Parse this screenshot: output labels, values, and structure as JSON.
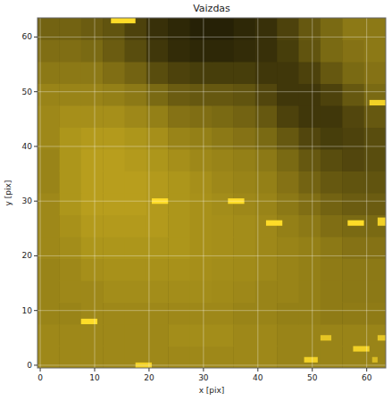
{
  "chart_data": {
    "type": "heatmap",
    "title": "Vaizdas",
    "x_label": "x [pix]",
    "y_label": "y [pix]",
    "xlim": [
      -0.5,
      63.5
    ],
    "ylim": [
      -0.5,
      63.5
    ],
    "xticks": [
      0,
      10,
      20,
      30,
      40,
      50,
      60
    ],
    "yticks": [
      0,
      10,
      20,
      30,
      40,
      50,
      60
    ],
    "grid": true,
    "color": "#ffdc28",
    "zlim": [
      0,
      1
    ],
    "x_edges": [
      -0.5,
      3.5,
      7.5,
      11.5,
      15.5,
      19.5,
      23.5,
      27.5,
      31.5,
      35.5,
      39.5,
      43.5,
      47.5,
      51.5,
      55.5,
      59.5,
      63.5
    ],
    "y_edges": [
      -0.5,
      3.5,
      7.5,
      11.5,
      15.5,
      19.5,
      23.5,
      27.5,
      31.5,
      35.5,
      39.5,
      43.5,
      47.5,
      51.5,
      55.5,
      59.5,
      63.5
    ],
    "z": [
      [
        0.62,
        0.62,
        0.62,
        0.62,
        0.62,
        0.62,
        0.62,
        0.62,
        0.62,
        0.62,
        0.62,
        0.6,
        0.6,
        0.6,
        0.6,
        0.6
      ],
      [
        0.62,
        0.62,
        0.62,
        0.62,
        0.62,
        0.62,
        0.64,
        0.64,
        0.64,
        0.62,
        0.62,
        0.6,
        0.6,
        0.6,
        0.6,
        0.6
      ],
      [
        0.6,
        0.6,
        0.62,
        0.62,
        0.62,
        0.62,
        0.62,
        0.62,
        0.62,
        0.6,
        0.6,
        0.58,
        0.58,
        0.56,
        0.56,
        0.56
      ],
      [
        0.6,
        0.62,
        0.62,
        0.64,
        0.64,
        0.64,
        0.64,
        0.64,
        0.63,
        0.62,
        0.6,
        0.6,
        0.58,
        0.56,
        0.55,
        0.55
      ],
      [
        0.6,
        0.62,
        0.65,
        0.66,
        0.66,
        0.66,
        0.66,
        0.65,
        0.64,
        0.63,
        0.62,
        0.6,
        0.58,
        0.56,
        0.55,
        0.55
      ],
      [
        0.62,
        0.64,
        0.68,
        0.68,
        0.68,
        0.68,
        0.68,
        0.66,
        0.65,
        0.64,
        0.62,
        0.6,
        0.58,
        0.55,
        0.52,
        0.52
      ],
      [
        0.62,
        0.66,
        0.7,
        0.7,
        0.7,
        0.7,
        0.68,
        0.66,
        0.65,
        0.64,
        0.62,
        0.58,
        0.55,
        0.5,
        0.48,
        0.48
      ],
      [
        0.62,
        0.68,
        0.72,
        0.72,
        0.72,
        0.7,
        0.68,
        0.66,
        0.64,
        0.62,
        0.6,
        0.55,
        0.5,
        0.45,
        0.42,
        0.42
      ],
      [
        0.6,
        0.68,
        0.72,
        0.72,
        0.72,
        0.7,
        0.68,
        0.65,
        0.62,
        0.6,
        0.58,
        0.52,
        0.45,
        0.4,
        0.38,
        0.38
      ],
      [
        0.6,
        0.68,
        0.72,
        0.72,
        0.7,
        0.68,
        0.65,
        0.62,
        0.6,
        0.58,
        0.55,
        0.48,
        0.4,
        0.35,
        0.32,
        0.35
      ],
      [
        0.62,
        0.68,
        0.7,
        0.7,
        0.68,
        0.65,
        0.6,
        0.58,
        0.55,
        0.52,
        0.48,
        0.4,
        0.32,
        0.28,
        0.3,
        0.35
      ],
      [
        0.62,
        0.65,
        0.65,
        0.65,
        0.62,
        0.58,
        0.52,
        0.5,
        0.48,
        0.45,
        0.4,
        0.3,
        0.25,
        0.25,
        0.32,
        0.4
      ],
      [
        0.6,
        0.6,
        0.6,
        0.58,
        0.55,
        0.48,
        0.42,
        0.4,
        0.4,
        0.38,
        0.32,
        0.25,
        0.25,
        0.3,
        0.4,
        0.48
      ],
      [
        0.55,
        0.55,
        0.55,
        0.5,
        0.45,
        0.35,
        0.3,
        0.28,
        0.28,
        0.28,
        0.25,
        0.25,
        0.3,
        0.4,
        0.48,
        0.52
      ],
      [
        0.5,
        0.5,
        0.48,
        0.42,
        0.35,
        0.25,
        0.2,
        0.18,
        0.18,
        0.2,
        0.22,
        0.28,
        0.38,
        0.48,
        0.52,
        0.55
      ],
      [
        0.45,
        0.45,
        0.42,
        0.38,
        0.3,
        0.22,
        0.18,
        0.15,
        0.15,
        0.18,
        0.22,
        0.3,
        0.4,
        0.48,
        0.55,
        0.55
      ]
    ],
    "spots": [
      {
        "x0": 13,
        "x1": 17.5,
        "y0": 62.5,
        "y1": 63.5,
        "value": 1
      },
      {
        "x0": 20.5,
        "x1": 23.5,
        "y0": 29.5,
        "y1": 30.5,
        "value": 1
      },
      {
        "x0": 34.5,
        "x1": 37.5,
        "y0": 29.5,
        "y1": 30.5,
        "value": 1
      },
      {
        "x0": 41.5,
        "x1": 44.5,
        "y0": 25.5,
        "y1": 26.5,
        "value": 1
      },
      {
        "x0": 56.5,
        "x1": 59.5,
        "y0": 25.5,
        "y1": 26.5,
        "value": 1
      },
      {
        "x0": 62,
        "x1": 64,
        "y0": 25.5,
        "y1": 27,
        "value": 0.95
      },
      {
        "x0": 60.5,
        "x1": 64,
        "y0": 47.5,
        "y1": 48.5,
        "value": 0.95
      },
      {
        "x0": 7.5,
        "x1": 10.5,
        "y0": 7.5,
        "y1": 8.5,
        "value": 1
      },
      {
        "x0": 17.5,
        "x1": 20.5,
        "y0": -0.5,
        "y1": 0.5,
        "value": 0.95
      },
      {
        "x0": 48.5,
        "x1": 51,
        "y0": 0.5,
        "y1": 1.5,
        "value": 0.95
      },
      {
        "x0": 51.5,
        "x1": 53.5,
        "y0": 4.5,
        "y1": 5.5,
        "value": 0.9
      },
      {
        "x0": 57.5,
        "x1": 60.5,
        "y0": 2.5,
        "y1": 3.5,
        "value": 0.95
      },
      {
        "x0": 62,
        "x1": 63.5,
        "y0": 4.5,
        "y1": 5.5,
        "value": 0.9
      },
      {
        "x0": 61,
        "x1": 62,
        "y0": 0.5,
        "y1": 1.5,
        "value": 0.85
      }
    ]
  }
}
